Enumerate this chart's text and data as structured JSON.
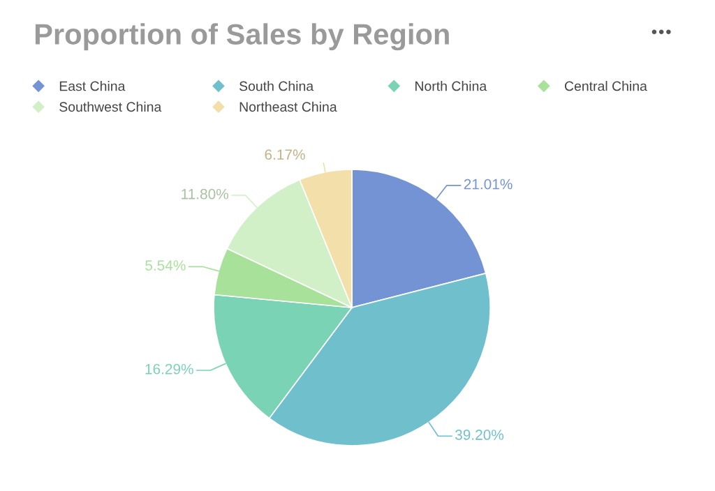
{
  "chart_data": {
    "type": "pie",
    "title": "Proportion of Sales by Region",
    "categories": [
      "East China",
      "South China",
      "North China",
      "Central China",
      "Southwest China",
      "Northeast China"
    ],
    "values": [
      21.01,
      39.2,
      16.29,
      5.54,
      11.8,
      6.17
    ],
    "value_labels": [
      "21.01%",
      "39.20%",
      "16.29%",
      "5.54%",
      "11.80%",
      "6.17%"
    ],
    "colors": [
      "#7393d4",
      "#6fc0cc",
      "#7bd3b5",
      "#a8e29a",
      "#d2f0c8",
      "#f3dfaa"
    ],
    "legend": "top"
  }
}
